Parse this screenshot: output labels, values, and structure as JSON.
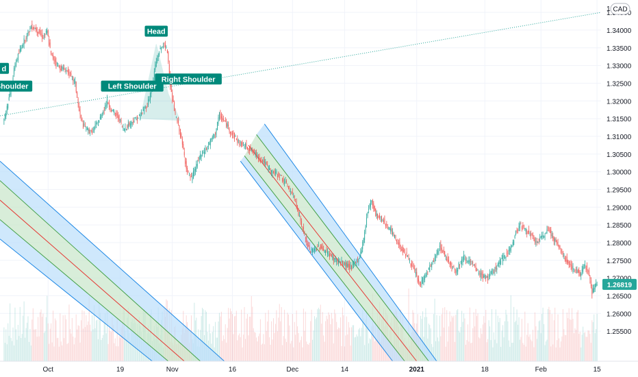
{
  "chart_data": {
    "type": "candlestick",
    "currency": "CAD",
    "y_range": [
      1.2465,
      1.3485
    ],
    "y_ticks": [
      "1.34500",
      "1.34000",
      "1.33500",
      "1.33000",
      "1.32500",
      "1.32000",
      "1.31500",
      "1.31000",
      "1.30500",
      "1.30000",
      "1.29500",
      "1.29000",
      "1.28500",
      "1.28000",
      "1.27500",
      "1.27000",
      "1.26500",
      "1.26000",
      "1.25500"
    ],
    "y_top_partial": "1",
    "current_price": "1.26819",
    "x_labels": [
      {
        "label": "Oct",
        "day": 0
      },
      {
        "label": "19",
        "day": 18
      },
      {
        "label": "Nov",
        "day": 31
      },
      {
        "label": "16",
        "day": 46
      },
      {
        "label": "Dec",
        "day": 61
      },
      {
        "label": "14",
        "day": 74
      },
      {
        "label": "2021",
        "day": 92
      },
      {
        "label": "18",
        "day": 109
      },
      {
        "label": "Feb",
        "day": 123
      },
      {
        "label": "15",
        "day": 137
      }
    ],
    "x_range_days": [
      -12,
      138
    ],
    "price_path": [
      {
        "day": -11,
        "price": 1.314
      },
      {
        "day": -9,
        "price": 1.323
      },
      {
        "day": -8,
        "price": 1.3305
      },
      {
        "day": -6,
        "price": 1.3365
      },
      {
        "day": -4,
        "price": 1.341
      },
      {
        "day": -3,
        "price": 1.3405
      },
      {
        "day": -1,
        "price": 1.338
      },
      {
        "day": 0,
        "price": 1.3395
      },
      {
        "day": 1,
        "price": 1.333
      },
      {
        "day": 3,
        "price": 1.3295
      },
      {
        "day": 5,
        "price": 1.3285
      },
      {
        "day": 7,
        "price": 1.325
      },
      {
        "day": 8,
        "price": 1.317
      },
      {
        "day": 9,
        "price": 1.313
      },
      {
        "day": 11,
        "price": 1.311
      },
      {
        "day": 13,
        "price": 1.3145
      },
      {
        "day": 15,
        "price": 1.32
      },
      {
        "day": 16,
        "price": 1.3175
      },
      {
        "day": 18,
        "price": 1.315
      },
      {
        "day": 19,
        "price": 1.312
      },
      {
        "day": 21,
        "price": 1.314
      },
      {
        "day": 23,
        "price": 1.3155
      },
      {
        "day": 25,
        "price": 1.319
      },
      {
        "day": 26,
        "price": 1.323
      },
      {
        "day": 27,
        "price": 1.33
      },
      {
        "day": 28,
        "price": 1.334
      },
      {
        "day": 29,
        "price": 1.336
      },
      {
        "day": 30,
        "price": 1.334
      },
      {
        "day": 31,
        "price": 1.322
      },
      {
        "day": 32,
        "price": 1.316
      },
      {
        "day": 33,
        "price": 1.312
      },
      {
        "day": 34,
        "price": 1.306
      },
      {
        "day": 35,
        "price": 1.3
      },
      {
        "day": 36,
        "price": 1.298
      },
      {
        "day": 37,
        "price": 1.301
      },
      {
        "day": 38,
        "price": 1.304
      },
      {
        "day": 40,
        "price": 1.307
      },
      {
        "day": 42,
        "price": 1.311
      },
      {
        "day": 43,
        "price": 1.316
      },
      {
        "day": 45,
        "price": 1.313
      },
      {
        "day": 46,
        "price": 1.311
      },
      {
        "day": 48,
        "price": 1.308
      },
      {
        "day": 50,
        "price": 1.307
      },
      {
        "day": 52,
        "price": 1.305
      },
      {
        "day": 54,
        "price": 1.303
      },
      {
        "day": 56,
        "price": 1.3
      },
      {
        "day": 58,
        "price": 1.299
      },
      {
        "day": 60,
        "price": 1.296
      },
      {
        "day": 62,
        "price": 1.292
      },
      {
        "day": 63,
        "price": 1.287
      },
      {
        "day": 64,
        "price": 1.283
      },
      {
        "day": 65,
        "price": 1.279
      },
      {
        "day": 66,
        "price": 1.2775
      },
      {
        "day": 68,
        "price": 1.279
      },
      {
        "day": 70,
        "price": 1.277
      },
      {
        "day": 72,
        "price": 1.275
      },
      {
        "day": 74,
        "price": 1.274
      },
      {
        "day": 76,
        "price": 1.273
      },
      {
        "day": 78,
        "price": 1.276
      },
      {
        "day": 79,
        "price": 1.281
      },
      {
        "day": 80,
        "price": 1.289
      },
      {
        "day": 81,
        "price": 1.292
      },
      {
        "day": 82,
        "price": 1.288
      },
      {
        "day": 84,
        "price": 1.286
      },
      {
        "day": 86,
        "price": 1.283
      },
      {
        "day": 88,
        "price": 1.279
      },
      {
        "day": 90,
        "price": 1.276
      },
      {
        "day": 92,
        "price": 1.271
      },
      {
        "day": 93,
        "price": 1.268
      },
      {
        "day": 95,
        "price": 1.272
      },
      {
        "day": 97,
        "price": 1.276
      },
      {
        "day": 98,
        "price": 1.279
      },
      {
        "day": 100,
        "price": 1.275
      },
      {
        "day": 102,
        "price": 1.272
      },
      {
        "day": 104,
        "price": 1.276
      },
      {
        "day": 106,
        "price": 1.274
      },
      {
        "day": 108,
        "price": 1.271
      },
      {
        "day": 110,
        "price": 1.27
      },
      {
        "day": 112,
        "price": 1.273
      },
      {
        "day": 114,
        "price": 1.276
      },
      {
        "day": 116,
        "price": 1.279
      },
      {
        "day": 117,
        "price": 1.283
      },
      {
        "day": 118,
        "price": 1.285
      },
      {
        "day": 120,
        "price": 1.283
      },
      {
        "day": 122,
        "price": 1.28
      },
      {
        "day": 124,
        "price": 1.282
      },
      {
        "day": 125,
        "price": 1.284
      },
      {
        "day": 127,
        "price": 1.28
      },
      {
        "day": 129,
        "price": 1.276
      },
      {
        "day": 131,
        "price": 1.273
      },
      {
        "day": 133,
        "price": 1.271
      },
      {
        "day": 134,
        "price": 1.274
      },
      {
        "day": 135,
        "price": 1.272
      },
      {
        "day": 136,
        "price": 1.266
      },
      {
        "day": 137,
        "price": 1.2682
      }
    ],
    "pattern": {
      "name": "Head and Shoulders",
      "labels": [
        {
          "text": "d",
          "day": -11,
          "price": 1.329
        },
        {
          "text": "Shoulder",
          "day": -9,
          "price": 1.324
        },
        {
          "text": "Left Shoulder",
          "day": 21,
          "price": 1.324
        },
        {
          "text": "Head",
          "day": 27,
          "price": 1.3395
        },
        {
          "text": "Right Shoulder",
          "day": 35,
          "price": 1.326
        }
      ],
      "neckline": [
        {
          "day": -12,
          "price": 1.3158
        },
        {
          "day": 138,
          "price": 1.345
        }
      ],
      "fill_points": [
        {
          "day": 23,
          "price": 1.315
        },
        {
          "day": 27,
          "price": 1.336
        },
        {
          "day": 30,
          "price": 1.322
        },
        {
          "day": 33,
          "price": 1.3145
        }
      ]
    },
    "channels": [
      {
        "upper": [
          {
            "day": -12,
            "price": 1.303
          },
          {
            "day": 44,
            "price": 1.2465
          }
        ],
        "mid_upper": [
          {
            "day": -12,
            "price": 1.2975
          },
          {
            "day": 38,
            "price": 1.2465
          }
        ],
        "median": [
          {
            "day": -12,
            "price": 1.292
          },
          {
            "day": 34,
            "price": 1.2465
          }
        ],
        "mid_lower": [
          {
            "day": -12,
            "price": 1.2865
          },
          {
            "day": 30,
            "price": 1.2465
          }
        ],
        "lower": [
          {
            "day": -12,
            "price": 1.281
          },
          {
            "day": 26,
            "price": 1.2465
          }
        ]
      },
      {
        "upper": [
          {
            "day": 54,
            "price": 1.3135
          },
          {
            "day": 97,
            "price": 1.2465
          }
        ],
        "mid_upper": [
          {
            "day": 52,
            "price": 1.3105
          },
          {
            "day": 95,
            "price": 1.2465
          }
        ],
        "median": [
          {
            "day": 50,
            "price": 1.3075
          },
          {
            "day": 92,
            "price": 1.2465
          }
        ],
        "mid_lower": [
          {
            "day": 49,
            "price": 1.3045
          },
          {
            "day": 89,
            "price": 1.2465
          }
        ],
        "lower": [
          {
            "day": 48,
            "price": 1.303
          },
          {
            "day": 86,
            "price": 1.2465
          }
        ]
      }
    ],
    "colors": {
      "up": "#26a69a",
      "down": "#ef5350",
      "label_bg": "#00897b",
      "channel_fill": "#bbdefb",
      "channel_inner": "#c8e6c9",
      "channel_line": "#1e88e5",
      "median_line": "#e53935",
      "inner_line": "#43a047",
      "neckline": "#26a69a",
      "grid": "#f0f3fa",
      "axis_text": "#131722"
    },
    "grid": true
  }
}
